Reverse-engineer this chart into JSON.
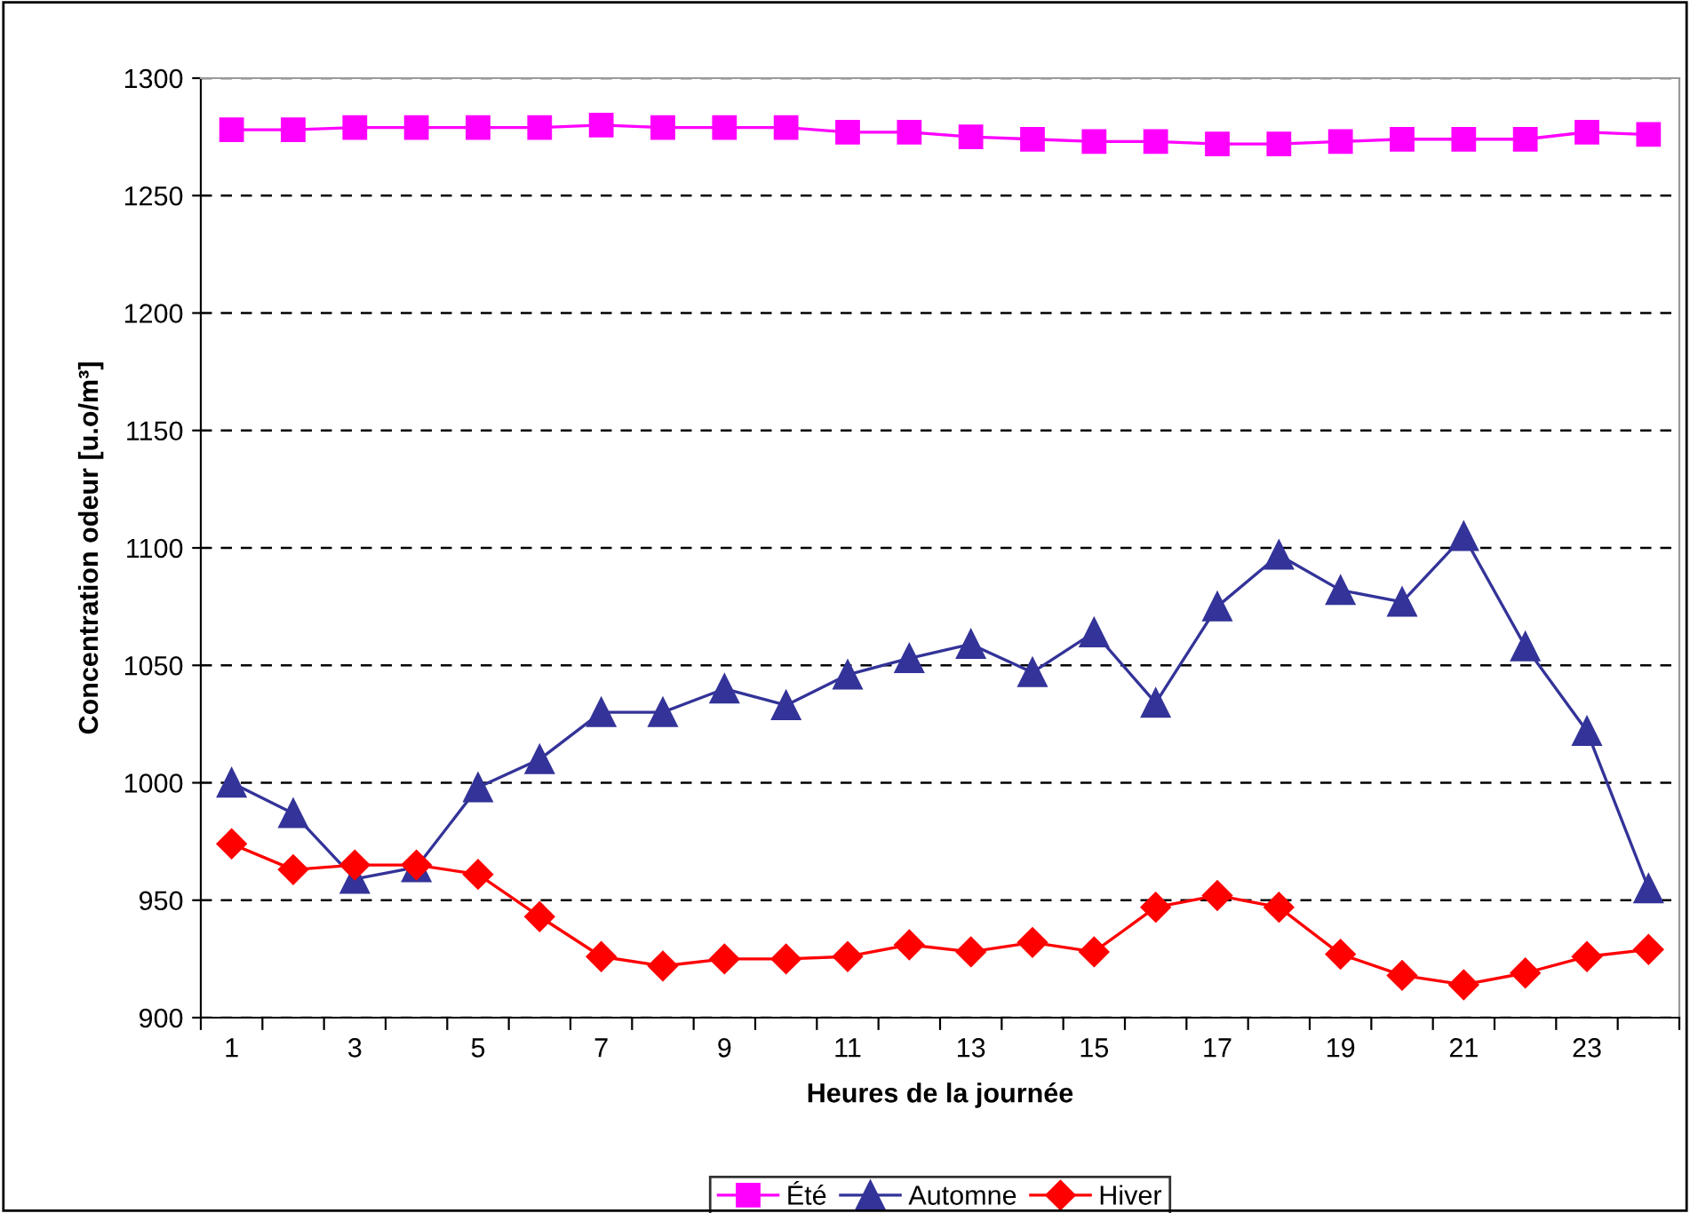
{
  "chart_data": {
    "type": "line",
    "xlabel": "Heures de la journée",
    "ylabel": "Concentration odeur [u.o/m³]",
    "categories": [
      "1",
      null,
      "3",
      null,
      "5",
      null,
      "7",
      null,
      "9",
      null,
      "11",
      null,
      "13",
      null,
      "15",
      null,
      "17",
      null,
      "19",
      null,
      "21",
      null,
      "23",
      null
    ],
    "series": [
      {
        "name": "Été",
        "color": "#ff00ff",
        "marker": "square",
        "values": [
          1278,
          1278,
          1279,
          1279,
          1279,
          1279,
          1280,
          1279,
          1279,
          1279,
          1277,
          1277,
          1275,
          1274,
          1273,
          1273,
          1272,
          1272,
          1273,
          1274,
          1274,
          1274,
          1277,
          1276
        ]
      },
      {
        "name": "Automne",
        "color": "#333399",
        "marker": "triangle",
        "values": [
          1000,
          987,
          959,
          964,
          998,
          1010,
          1030,
          1030,
          1040,
          1033,
          1046,
          1053,
          1059,
          1047,
          1064,
          1034,
          1075,
          1097,
          1082,
          1077,
          1105,
          1058,
          1022,
          955
        ]
      },
      {
        "name": "Hiver",
        "color": "#ff0000",
        "marker": "diamond",
        "values": [
          974,
          963,
          965,
          965,
          961,
          943,
          926,
          922,
          925,
          925,
          926,
          931,
          928,
          932,
          928,
          947,
          952,
          947,
          927,
          918,
          914,
          919,
          926,
          929
        ]
      }
    ],
    "ylim": [
      900,
      1300
    ],
    "yticks": [
      900,
      950,
      1000,
      1050,
      1100,
      1150,
      1200,
      1250,
      1300
    ],
    "grid": "y",
    "legend": "bottom",
    "line_style": "solid"
  }
}
